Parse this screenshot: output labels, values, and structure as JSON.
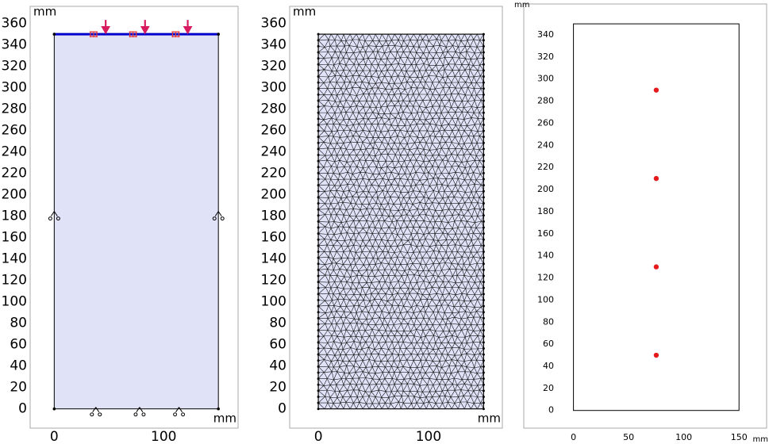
{
  "chart_data": [
    {
      "type": "geometry",
      "x_unit": "mm",
      "y_unit": "mm",
      "xlim": [
        -22,
        168
      ],
      "ylim": [
        -18,
        376
      ],
      "xticks": [
        0,
        100
      ],
      "yticks": [
        0,
        20,
        40,
        60,
        80,
        100,
        120,
        140,
        160,
        180,
        200,
        220,
        240,
        260,
        280,
        300,
        320,
        340,
        360
      ],
      "domain": {
        "x": [
          0,
          150
        ],
        "y": [
          0,
          350
        ]
      },
      "fill_color": "#e0e2f8",
      "edge_color": "#0000cc",
      "load_color": "#d81b60",
      "loads_x": [
        47,
        83,
        122
      ],
      "constraints_x": [
        36,
        72,
        111
      ],
      "supports_x": [
        38,
        78,
        114
      ],
      "supports_y": [
        180
      ]
    },
    {
      "type": "mesh",
      "x_unit": "mm",
      "y_unit": "mm",
      "xlim": [
        -26,
        167
      ],
      "ylim": [
        -18,
        376
      ],
      "xticks": [
        0,
        100
      ],
      "yticks": [
        0,
        20,
        40,
        60,
        80,
        100,
        120,
        140,
        160,
        180,
        200,
        220,
        240,
        260,
        280,
        300,
        320,
        340,
        360
      ],
      "domain": {
        "x": [
          0,
          150
        ],
        "y": [
          0,
          350
        ]
      },
      "fill_color": "#e0e2f8"
    },
    {
      "type": "scatter",
      "x_unit": "mm",
      "y_unit": "mm",
      "xlim": [
        -45,
        175
      ],
      "ylim": [
        -16,
        368
      ],
      "xticks": [
        0,
        50,
        100,
        150
      ],
      "yticks": [
        0,
        20,
        40,
        60,
        80,
        100,
        120,
        140,
        160,
        180,
        200,
        220,
        240,
        260,
        280,
        300,
        320,
        340
      ],
      "domain": {
        "x": [
          0,
          150
        ],
        "y": [
          0,
          350
        ]
      },
      "x": [
        75,
        75,
        75,
        75
      ],
      "values": [
        50,
        130,
        210,
        290
      ],
      "color": "#e41a1c"
    }
  ]
}
